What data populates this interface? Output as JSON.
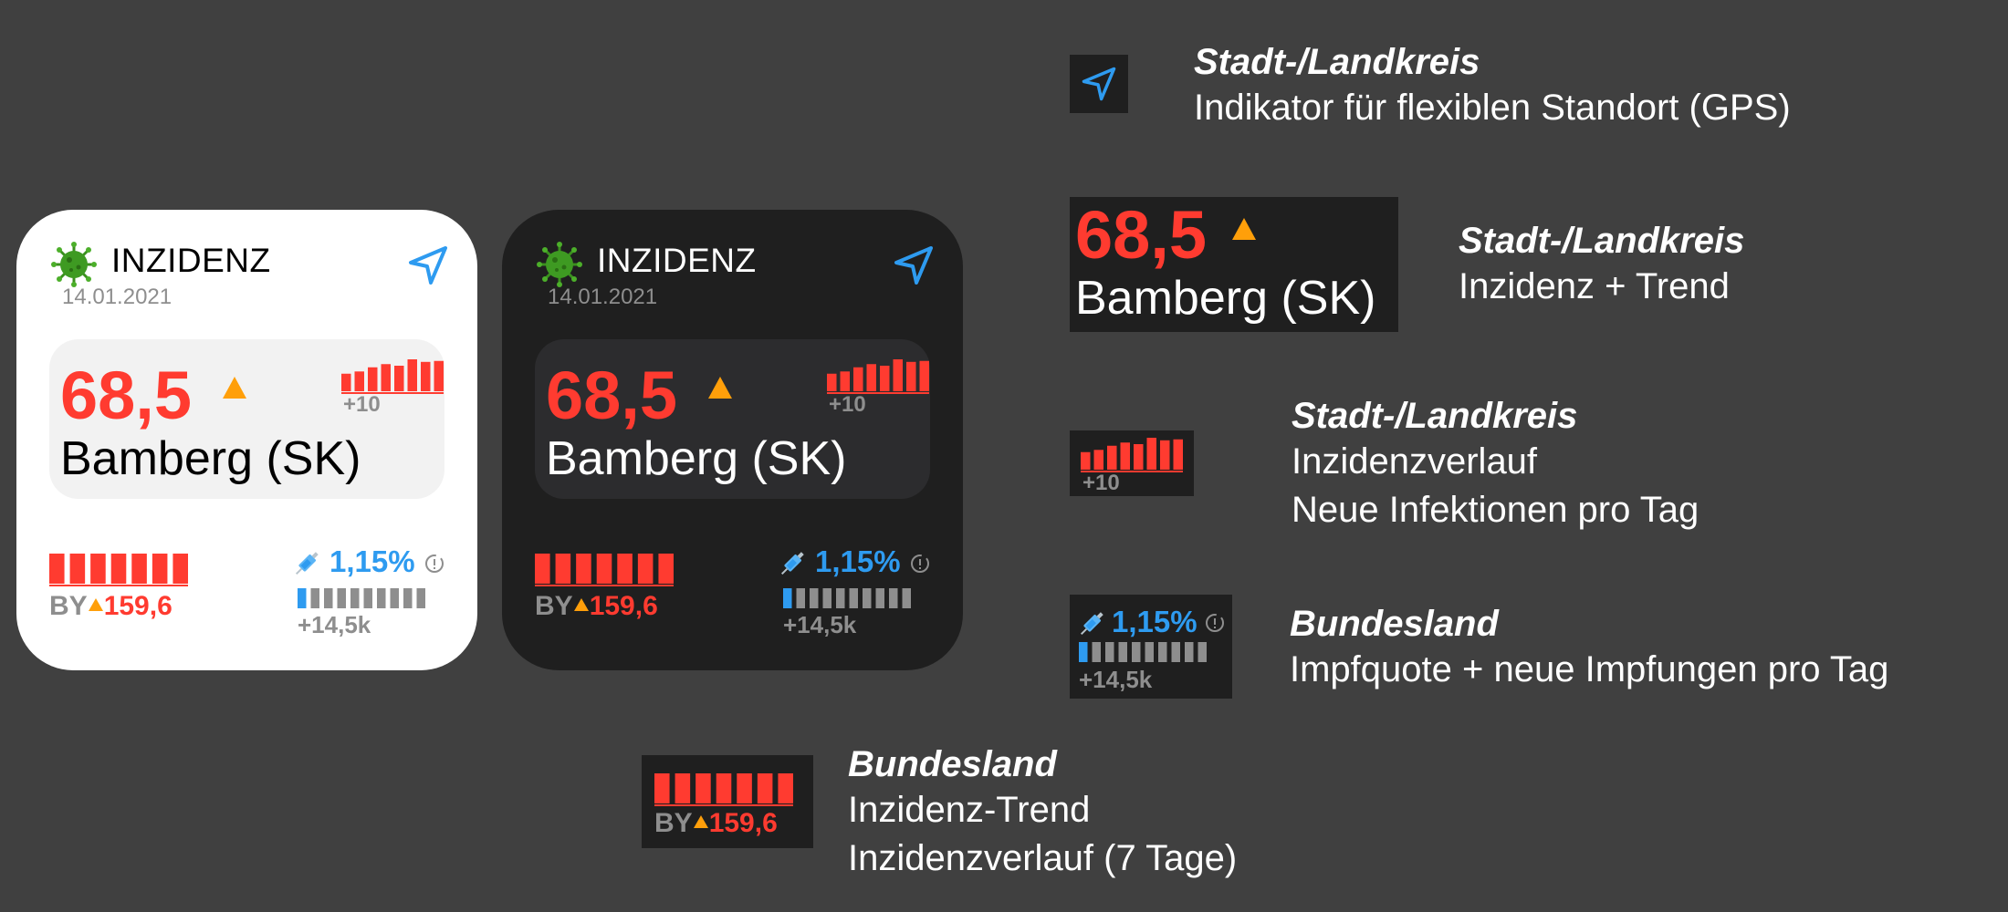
{
  "widget": {
    "title": "INZIDENZ",
    "date": "14.01.2021",
    "incidence": "68,5",
    "city": "Bamberg (SK)",
    "city_change": "+10",
    "state_code": "BY",
    "state_incidence": "159,6",
    "vaccination_rate": "1,15%",
    "vaccination_change": "+14,5k",
    "icons": [
      "virus-icon",
      "location-arrow-icon",
      "trend-up-triangle-icon",
      "syringe-icon",
      "info-icon"
    ],
    "city_history_levels": [
      0.55,
      0.62,
      0.75,
      0.85,
      0.8,
      1.0,
      0.92,
      0.95
    ],
    "state_history_levels": [
      1.0,
      1.0,
      1.0,
      1.0,
      1.0,
      1.0,
      1.0
    ],
    "vaccination_progress_bars": {
      "filled": 1,
      "total": 10
    }
  },
  "legend": {
    "location": {
      "heading": "Stadt-/Landkreis",
      "lines": [
        "Indikator für flexiblen Standort (GPS)"
      ]
    },
    "incidence_trend": {
      "heading": "Stadt-/Landkreis",
      "lines": [
        "Inzidenz + Trend"
      ]
    },
    "city_history": {
      "heading": "Stadt-/Landkreis",
      "lines": [
        "Inzidenzverlauf",
        "Neue Infektionen pro Tag"
      ]
    },
    "vaccination": {
      "heading": "Bundesland",
      "lines": [
        "Impfquote + neue Impfungen pro Tag"
      ]
    },
    "state_trend": {
      "heading": "Bundesland",
      "lines": [
        "Inzidenz-Trend",
        "Inzidenzverlauf (7 Tage)"
      ]
    }
  },
  "colors": {
    "background": "#404040",
    "incidence_red": "#ff3b30",
    "trend_orange": "#ff9f0a",
    "vaccination_blue": "#2e9bf0",
    "muted_gray": "#8e8e8e",
    "dark_widget": "#1f1f1f"
  }
}
